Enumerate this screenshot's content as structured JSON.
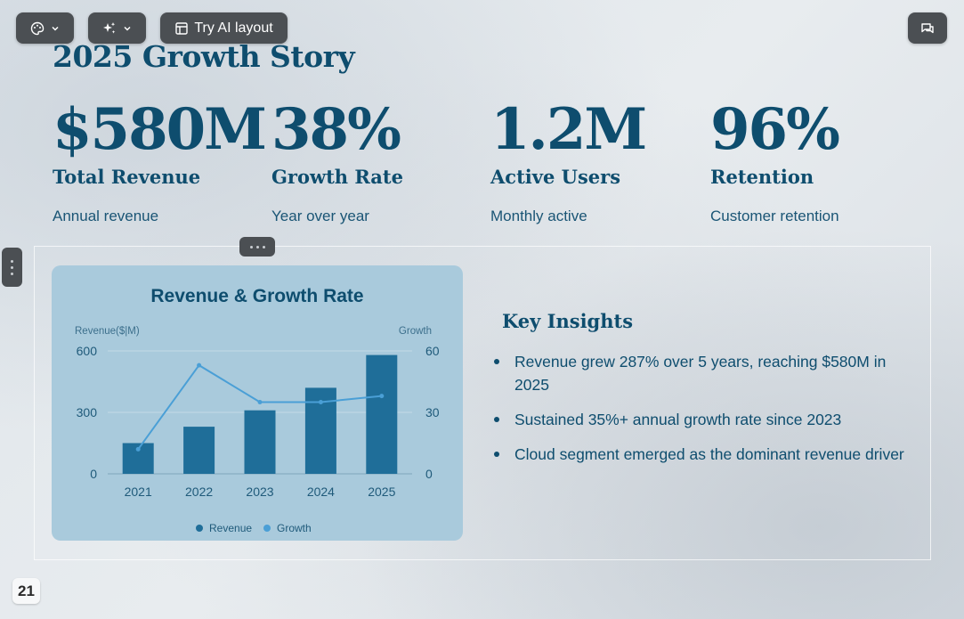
{
  "toolbar": {
    "theme_icon": "palette-icon",
    "sparkle_icon": "sparkle-icon",
    "ai_layout_label": "Try AI layout",
    "comments_icon": "chat-icon"
  },
  "slide": {
    "title": "2025 Growth Story",
    "stats": [
      {
        "value": "$580M",
        "label": "Total Revenue",
        "desc": "Annual revenue"
      },
      {
        "value": "38%",
        "label": "Growth Rate",
        "desc": "Year over year"
      },
      {
        "value": "1.2M",
        "label": "Active Users",
        "desc": "Monthly active"
      },
      {
        "value": "96%",
        "label": "Retention",
        "desc": "Customer retention"
      }
    ],
    "insights": {
      "title": "Key Insights",
      "items": [
        "Revenue grew 287% over 5 years, reaching $580M in 2025",
        "Sustained 35%+ annual growth rate since 2023",
        "Cloud segment emerged as the dominant revenue driver"
      ]
    },
    "page_number": "21"
  },
  "chart_data": {
    "type": "bar",
    "title": "Revenue & Growth Rate",
    "categories": [
      "2021",
      "2022",
      "2023",
      "2024",
      "2025"
    ],
    "y_left_label": "Revenue($|M)",
    "y_right_label": "Growth",
    "y_left_range": [
      0,
      600
    ],
    "y_right_range": [
      0,
      60
    ],
    "y_left_ticks": [
      "600",
      "300",
      "0"
    ],
    "y_right_ticks": [
      "60",
      "30",
      "0"
    ],
    "grid": true,
    "legend": "bottom",
    "series": [
      {
        "name": "Revenue",
        "kind": "bar",
        "axis": "left",
        "color": "#1f6e99",
        "values": [
          150,
          230,
          310,
          420,
          580
        ]
      },
      {
        "name": "Growth",
        "kind": "line",
        "axis": "right",
        "color": "#4a9fd6",
        "values": [
          12,
          53,
          35,
          35,
          38
        ]
      }
    ]
  }
}
